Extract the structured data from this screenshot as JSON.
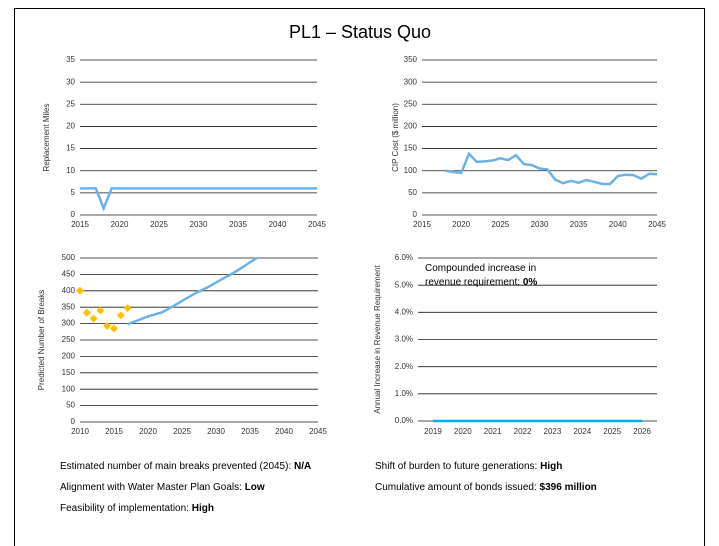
{
  "title": "PL1 – Status Quo",
  "chart_data": [
    {
      "type": "line",
      "ylabel": "Replacement Miles",
      "xlim": [
        2015,
        2045
      ],
      "xticks": [
        2015,
        2020,
        2025,
        2030,
        2035,
        2040,
        2045
      ],
      "ylim": [
        0,
        35
      ],
      "yticks": [
        0,
        5,
        10,
        15,
        20,
        25,
        30,
        35
      ],
      "grid": true,
      "series": [
        {
          "color": "#6cb2e6",
          "type": "line",
          "x": [
            2015,
            2016,
            2017,
            2018,
            2019,
            2020,
            2021,
            2022,
            2023,
            2024,
            2025,
            2026,
            2027,
            2028,
            2029,
            2030,
            2031,
            2032,
            2033,
            2034,
            2035,
            2036,
            2037,
            2038,
            2039,
            2040,
            2041,
            2042,
            2043,
            2044,
            2045
          ],
          "values": [
            6,
            6,
            6,
            1.5,
            6,
            6,
            6,
            6,
            6,
            6,
            6,
            6,
            6,
            6,
            6,
            6,
            6,
            6,
            6,
            6,
            6,
            6,
            6,
            6,
            6,
            6,
            6,
            6,
            6,
            6,
            6
          ]
        }
      ]
    },
    {
      "type": "line",
      "ylabel": "CIP Cost ($ million)",
      "xlim": [
        2015,
        2045
      ],
      "xticks": [
        2015,
        2020,
        2025,
        2030,
        2035,
        2040,
        2045
      ],
      "ylim": [
        0,
        350
      ],
      "yticks": [
        0,
        50,
        100,
        150,
        200,
        250,
        300,
        350
      ],
      "grid": true,
      "series": [
        {
          "color": "#6cb2e6",
          "type": "line",
          "x": [
            2018,
            2019,
            2020,
            2021,
            2022,
            2023,
            2024,
            2025,
            2026,
            2027,
            2028,
            2029,
            2030,
            2031,
            2032,
            2033,
            2034,
            2035,
            2036,
            2037,
            2038,
            2039,
            2040,
            2041,
            2042,
            2043,
            2044,
            2045
          ],
          "values": [
            100,
            97,
            95,
            138,
            120,
            121,
            123,
            128,
            124,
            135,
            115,
            113,
            105,
            103,
            80,
            72,
            77,
            73,
            79,
            75,
            70,
            70,
            88,
            91,
            90,
            82,
            93,
            92
          ]
        }
      ]
    },
    {
      "type": "line",
      "ylabel": "Predicted Number of Breaks",
      "xlim": [
        2010,
        2045
      ],
      "xticks": [
        2010,
        2015,
        2020,
        2025,
        2030,
        2035,
        2040,
        2045
      ],
      "ylim": [
        0,
        500
      ],
      "yticks": [
        0,
        50,
        100,
        150,
        200,
        250,
        300,
        350,
        400,
        450,
        500
      ],
      "grid": true,
      "series": [
        {
          "color": "#ffc000",
          "type": "scatter",
          "x": [
            2010,
            2011,
            2012,
            2013,
            2014,
            2015,
            2016,
            2017
          ],
          "values": [
            400,
            333,
            315,
            340,
            293,
            285,
            325,
            347
          ]
        },
        {
          "color": "#6cb2e6",
          "type": "line",
          "x": [
            2017,
            2018,
            2019,
            2020,
            2021,
            2022,
            2023,
            2024,
            2025,
            2026,
            2027,
            2028,
            2029,
            2030,
            2031,
            2032,
            2033,
            2034,
            2035,
            2036
          ],
          "values": [
            298,
            306,
            314,
            322,
            328,
            334,
            345,
            357,
            369,
            381,
            393,
            403,
            413,
            425,
            437,
            448,
            460,
            473,
            487,
            500
          ]
        }
      ]
    },
    {
      "type": "line",
      "ylabel": "Annual Increase in Revenue Requirement",
      "categories": [
        "2019",
        "2020",
        "2021",
        "2022",
        "2023",
        "2024",
        "2025",
        "2026"
      ],
      "ylim": [
        0,
        6
      ],
      "yticks": [
        {
          "value": 0,
          "label": "0.0%"
        },
        {
          "value": 1,
          "label": "1.0%"
        },
        {
          "value": 2,
          "label": "2.0%"
        },
        {
          "value": 3,
          "label": "3.0%"
        },
        {
          "value": 4,
          "label": "4.0%"
        },
        {
          "value": 5,
          "label": "5.0%"
        },
        {
          "value": 6,
          "label": "6.0%"
        }
      ],
      "grid": true,
      "annotation": [
        "Compounded increase in",
        "revenue requirement:"
      ],
      "annotation_value": "0%",
      "series": [
        {
          "color": "#00b0f0",
          "type": "line",
          "values": [
            0,
            0,
            0,
            0,
            0,
            0,
            0,
            0
          ]
        }
      ]
    }
  ],
  "notes": [
    {
      "label": "Estimated number of main breaks prevented (2045):",
      "value": "N/A"
    },
    {
      "label": "Shift of burden to future generations:",
      "value": "High"
    },
    {
      "label": "Alignment with Water Master Plan Goals:",
      "value": "Low"
    },
    {
      "label": "Cumulative amount of bonds issued:",
      "value": "$396 million"
    },
    {
      "label": "Feasibility of implementation:",
      "value": "High"
    }
  ]
}
